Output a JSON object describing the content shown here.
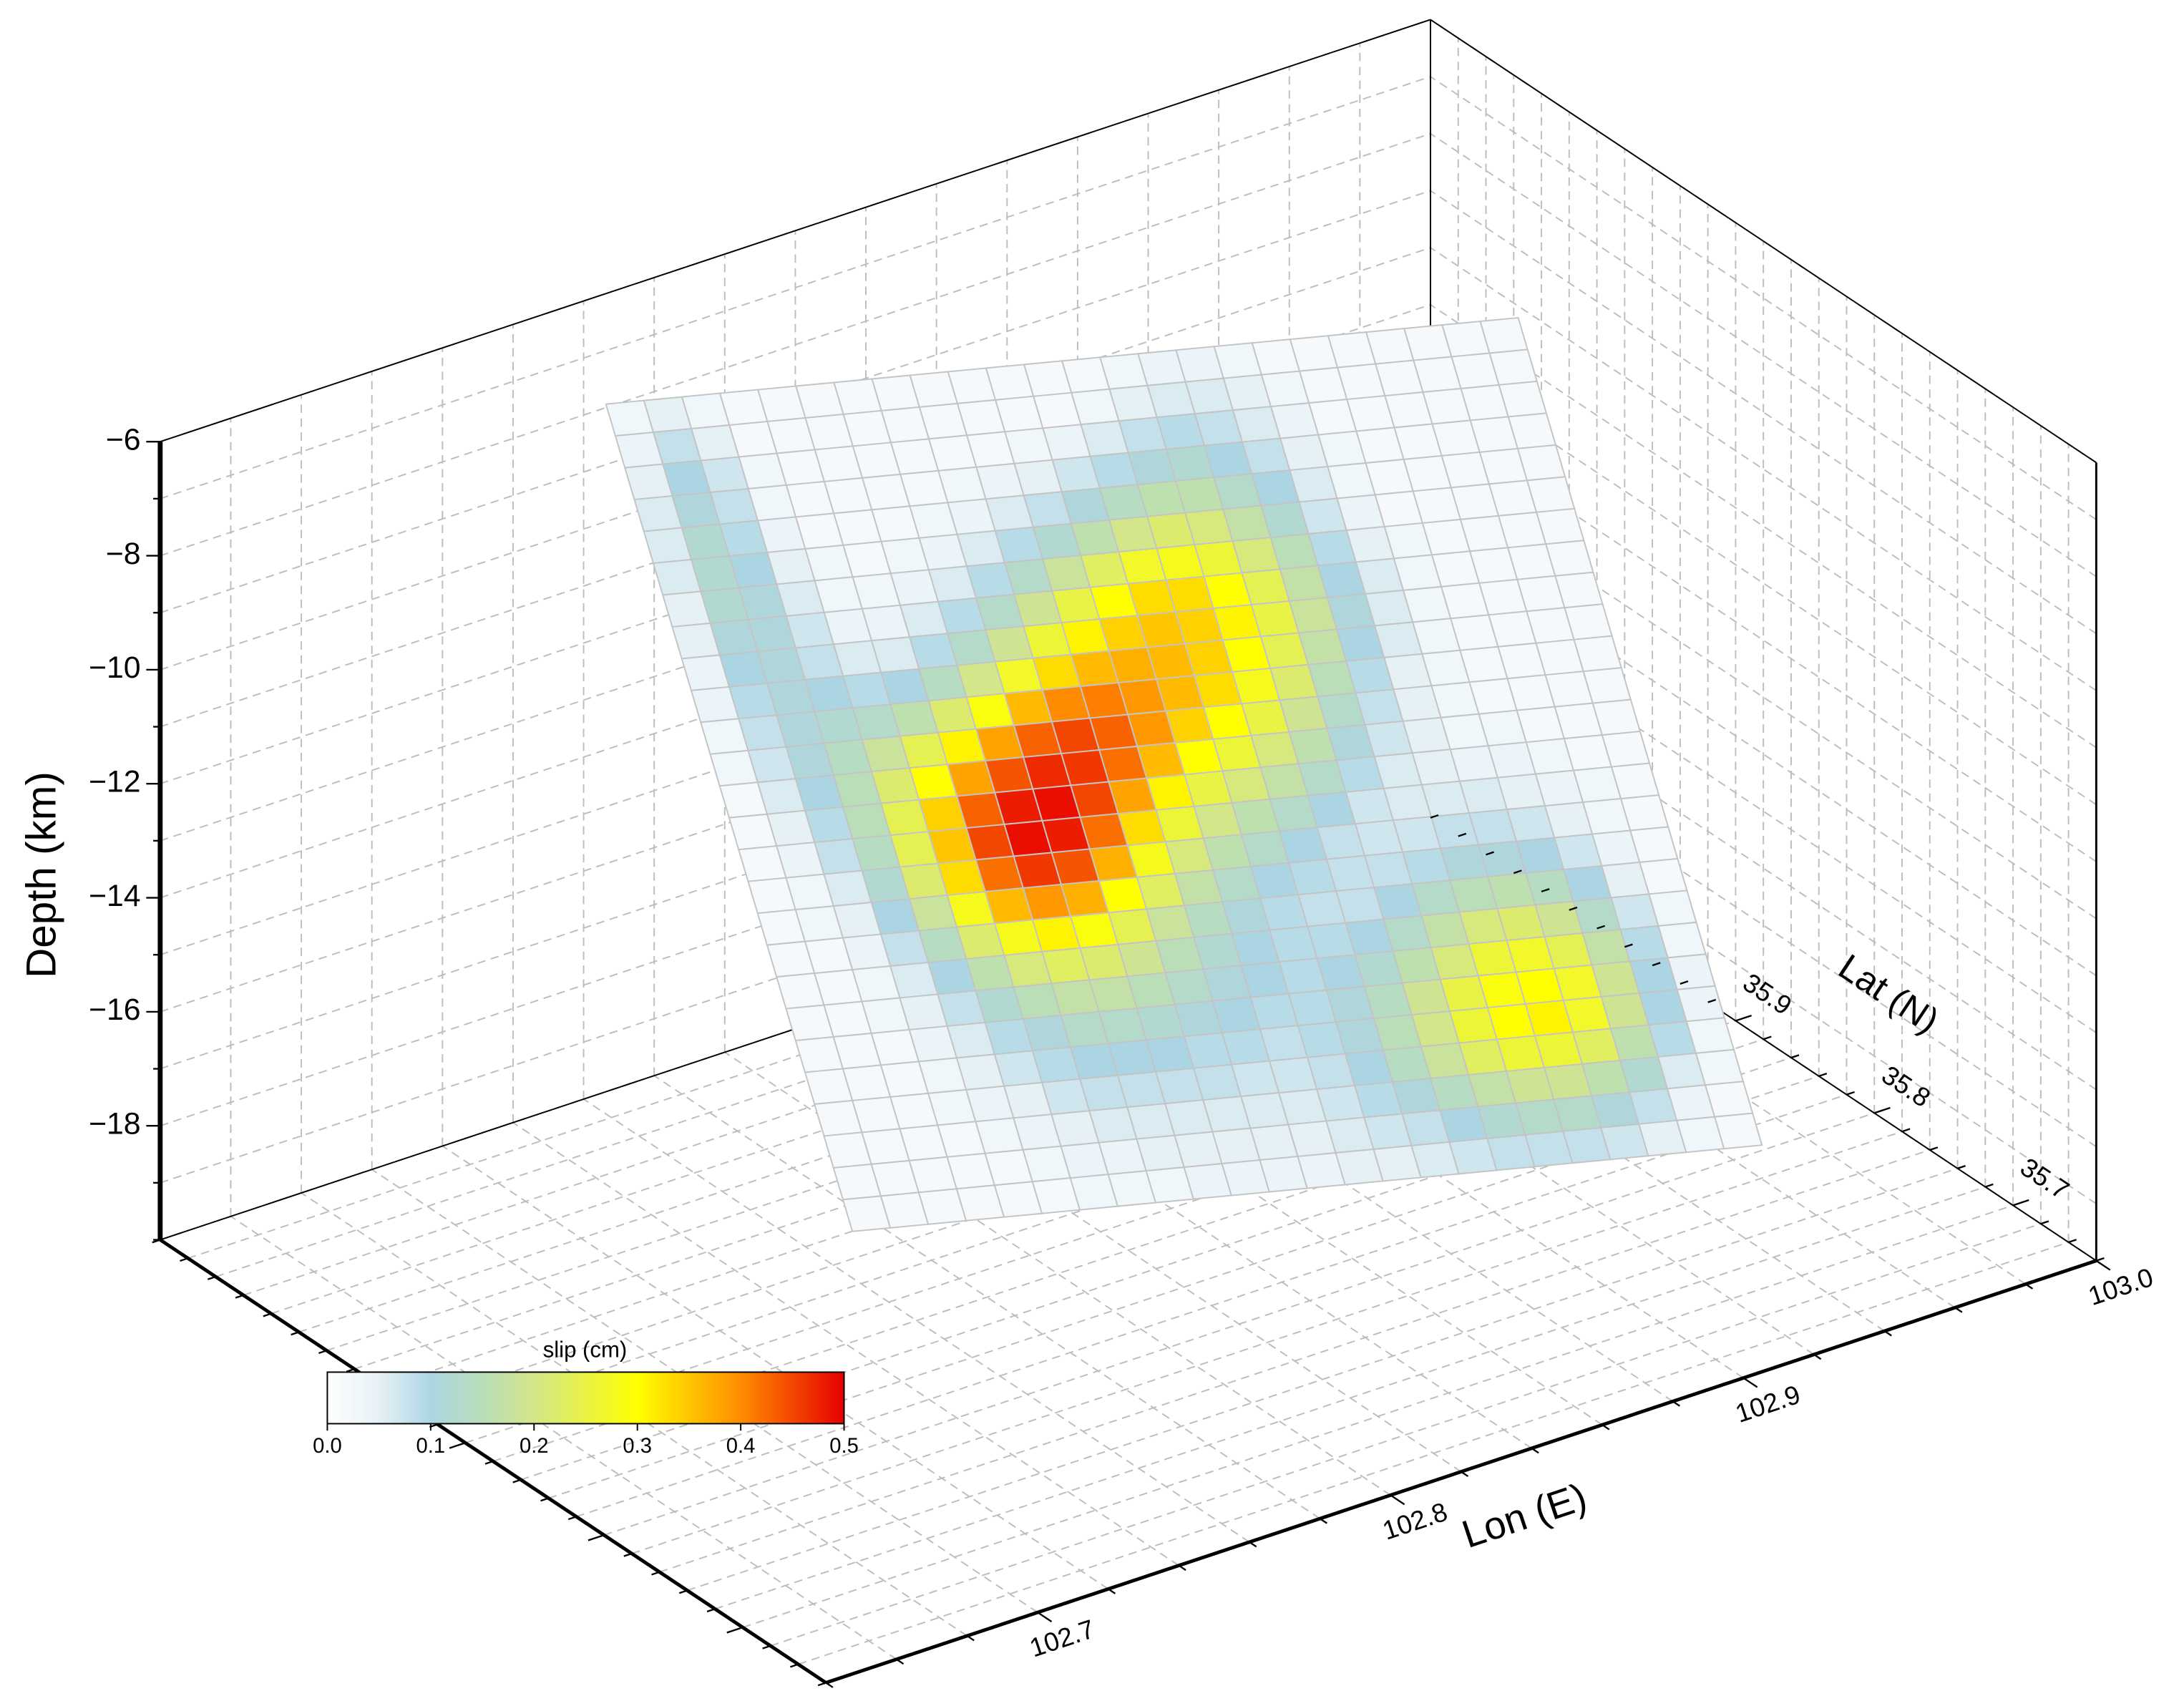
{
  "chart_data": {
    "type": "fault-slip-3d",
    "xlabel": "Lon (E)",
    "ylabel": "Lat (N)",
    "zlabel": "Depth (km)",
    "xlim": [
      102.64,
      103.0
    ],
    "xticks": [
      102.7,
      102.8,
      102.9,
      {
        "value": 103.0,
        "label": "103.0"
      }
    ],
    "ylim": [
      35.64,
      36.12
    ],
    "yticks": [
      35.7,
      35.8,
      35.9
    ],
    "zlim": [
      -20,
      -6
    ],
    "zticks": [
      {
        "value": -6,
        "label": "−6"
      },
      {
        "value": -8,
        "label": "−8"
      },
      {
        "value": -10,
        "label": "−10"
      },
      {
        "value": -12,
        "label": "−12"
      },
      {
        "value": -14,
        "label": "−14"
      },
      {
        "value": -16,
        "label": "−16"
      },
      {
        "value": -18,
        "label": "−18"
      }
    ],
    "grid": true,
    "grid_subdivisions": {
      "x": 5,
      "y": 5,
      "z": 2
    },
    "colorbar": {
      "label": "slip (cm)",
      "clim": [
        0,
        0.5
      ],
      "ticks": [
        {
          "value": 0,
          "label": "0.0"
        },
        0.1,
        0.2,
        0.3,
        0.4,
        0.5
      ],
      "colorscale": [
        [
          0,
          "#ffffff"
        ],
        [
          0.05,
          "#e6f1f6"
        ],
        [
          0.1,
          "#acd5e4"
        ],
        [
          0.15,
          "#b9deb8"
        ],
        [
          0.2,
          "#d3e68a"
        ],
        [
          0.3,
          "#ffff00"
        ],
        [
          0.4,
          "#ff8c00"
        ],
        [
          0.5,
          "#e60000"
        ]
      ]
    },
    "z": [
      [
        0.03,
        0.05,
        0.03,
        0.02,
        0.02,
        0.02,
        0.02,
        0.02,
        0.02,
        0.02,
        0.02,
        0.02,
        0.02,
        0.03,
        0.04,
        0.04,
        0.03,
        0.02,
        0.02,
        0.02,
        0.02,
        0.02,
        0.02,
        0.02
      ],
      [
        0.04,
        0.08,
        0.05,
        0.02,
        0.02,
        0.02,
        0.02,
        0.02,
        0.02,
        0.02,
        0.02,
        0.02,
        0.03,
        0.05,
        0.06,
        0.06,
        0.05,
        0.03,
        0.02,
        0.02,
        0.02,
        0.02,
        0.02,
        0.02
      ],
      [
        0.05,
        0.1,
        0.07,
        0.03,
        0.02,
        0.02,
        0.02,
        0.02,
        0.02,
        0.02,
        0.03,
        0.04,
        0.06,
        0.08,
        0.09,
        0.08,
        0.06,
        0.04,
        0.02,
        0.02,
        0.02,
        0.02,
        0.02,
        0.02
      ],
      [
        0.06,
        0.11,
        0.08,
        0.03,
        0.02,
        0.02,
        0.02,
        0.02,
        0.03,
        0.04,
        0.05,
        0.07,
        0.09,
        0.11,
        0.12,
        0.1,
        0.08,
        0.05,
        0.03,
        0.02,
        0.02,
        0.02,
        0.02,
        0.02
      ],
      [
        0.06,
        0.12,
        0.09,
        0.04,
        0.02,
        0.02,
        0.02,
        0.03,
        0.04,
        0.06,
        0.08,
        0.11,
        0.14,
        0.16,
        0.16,
        0.13,
        0.1,
        0.06,
        0.03,
        0.02,
        0.02,
        0.02,
        0.02,
        0.02
      ],
      [
        0.06,
        0.12,
        0.1,
        0.05,
        0.03,
        0.02,
        0.03,
        0.04,
        0.06,
        0.09,
        0.12,
        0.16,
        0.2,
        0.22,
        0.21,
        0.17,
        0.12,
        0.07,
        0.04,
        0.02,
        0.02,
        0.02,
        0.02,
        0.02
      ],
      [
        0.05,
        0.12,
        0.11,
        0.06,
        0.03,
        0.03,
        0.04,
        0.06,
        0.09,
        0.13,
        0.18,
        0.23,
        0.27,
        0.28,
        0.26,
        0.21,
        0.15,
        0.09,
        0.05,
        0.03,
        0.02,
        0.02,
        0.02,
        0.02
      ],
      [
        0.05,
        0.11,
        0.11,
        0.07,
        0.04,
        0.04,
        0.06,
        0.09,
        0.13,
        0.19,
        0.25,
        0.3,
        0.33,
        0.33,
        0.3,
        0.24,
        0.17,
        0.1,
        0.06,
        0.03,
        0.02,
        0.02,
        0.02,
        0.02
      ],
      [
        0.04,
        0.1,
        0.11,
        0.08,
        0.06,
        0.06,
        0.09,
        0.13,
        0.19,
        0.26,
        0.31,
        0.34,
        0.35,
        0.34,
        0.31,
        0.25,
        0.18,
        0.11,
        0.06,
        0.03,
        0.02,
        0.02,
        0.02,
        0.02
      ],
      [
        0.04,
        0.09,
        0.11,
        0.1,
        0.09,
        0.1,
        0.14,
        0.2,
        0.27,
        0.33,
        0.36,
        0.37,
        0.36,
        0.34,
        0.3,
        0.24,
        0.17,
        0.1,
        0.06,
        0.03,
        0.02,
        0.02,
        0.02,
        0.02
      ],
      [
        0.03,
        0.08,
        0.11,
        0.12,
        0.13,
        0.16,
        0.22,
        0.29,
        0.36,
        0.4,
        0.41,
        0.39,
        0.36,
        0.33,
        0.28,
        0.22,
        0.15,
        0.09,
        0.05,
        0.03,
        0.02,
        0.02,
        0.02,
        0.02
      ],
      [
        0.03,
        0.07,
        0.11,
        0.14,
        0.18,
        0.24,
        0.31,
        0.38,
        0.43,
        0.45,
        0.43,
        0.39,
        0.34,
        0.3,
        0.25,
        0.19,
        0.13,
        0.08,
        0.05,
        0.03,
        0.02,
        0.02,
        0.02,
        0.02
      ],
      [
        0.02,
        0.06,
        0.1,
        0.15,
        0.22,
        0.3,
        0.38,
        0.44,
        0.47,
        0.46,
        0.42,
        0.36,
        0.3,
        0.26,
        0.21,
        0.16,
        0.11,
        0.07,
        0.05,
        0.03,
        0.03,
        0.02,
        0.02,
        0.02
      ],
      [
        0.02,
        0.05,
        0.09,
        0.15,
        0.24,
        0.34,
        0.43,
        0.48,
        0.49,
        0.45,
        0.38,
        0.31,
        0.25,
        0.21,
        0.17,
        0.13,
        0.09,
        0.06,
        0.05,
        0.04,
        0.04,
        0.03,
        0.02,
        0.02
      ],
      [
        0.02,
        0.04,
        0.08,
        0.14,
        0.24,
        0.35,
        0.45,
        0.49,
        0.48,
        0.42,
        0.33,
        0.26,
        0.2,
        0.16,
        0.13,
        0.1,
        0.07,
        0.06,
        0.06,
        0.06,
        0.05,
        0.04,
        0.03,
        0.02
      ],
      [
        0.02,
        0.03,
        0.06,
        0.12,
        0.22,
        0.33,
        0.42,
        0.46,
        0.44,
        0.37,
        0.28,
        0.21,
        0.16,
        0.13,
        0.1,
        0.08,
        0.07,
        0.07,
        0.08,
        0.08,
        0.07,
        0.05,
        0.03,
        0.02
      ],
      [
        0.02,
        0.03,
        0.05,
        0.1,
        0.18,
        0.28,
        0.36,
        0.39,
        0.37,
        0.3,
        0.23,
        0.17,
        0.13,
        0.1,
        0.09,
        0.08,
        0.08,
        0.09,
        0.11,
        0.11,
        0.1,
        0.07,
        0.04,
        0.02
      ],
      [
        0.02,
        0.02,
        0.04,
        0.08,
        0.14,
        0.22,
        0.28,
        0.31,
        0.29,
        0.24,
        0.18,
        0.14,
        0.11,
        0.09,
        0.08,
        0.08,
        0.1,
        0.13,
        0.15,
        0.16,
        0.14,
        0.1,
        0.05,
        0.02
      ],
      [
        0.02,
        0.02,
        0.03,
        0.06,
        0.1,
        0.16,
        0.21,
        0.23,
        0.22,
        0.19,
        0.15,
        0.12,
        0.1,
        0.09,
        0.09,
        0.1,
        0.13,
        0.17,
        0.21,
        0.22,
        0.19,
        0.13,
        0.07,
        0.03
      ],
      [
        0.02,
        0.02,
        0.03,
        0.05,
        0.08,
        0.12,
        0.15,
        0.17,
        0.17,
        0.15,
        0.13,
        0.11,
        0.1,
        0.09,
        0.1,
        0.12,
        0.16,
        0.21,
        0.26,
        0.27,
        0.24,
        0.17,
        0.09,
        0.03
      ],
      [
        0.02,
        0.02,
        0.02,
        0.04,
        0.06,
        0.09,
        0.11,
        0.13,
        0.13,
        0.12,
        0.11,
        0.1,
        0.09,
        0.09,
        0.11,
        0.14,
        0.19,
        0.25,
        0.29,
        0.3,
        0.27,
        0.19,
        0.1,
        0.04
      ],
      [
        0.02,
        0.02,
        0.02,
        0.03,
        0.05,
        0.07,
        0.09,
        0.1,
        0.1,
        0.1,
        0.09,
        0.09,
        0.08,
        0.09,
        0.11,
        0.15,
        0.2,
        0.26,
        0.3,
        0.31,
        0.27,
        0.19,
        0.1,
        0.04
      ],
      [
        0.02,
        0.02,
        0.02,
        0.03,
        0.04,
        0.05,
        0.07,
        0.08,
        0.08,
        0.08,
        0.08,
        0.07,
        0.07,
        0.08,
        0.1,
        0.14,
        0.18,
        0.23,
        0.26,
        0.26,
        0.23,
        0.16,
        0.09,
        0.03
      ],
      [
        0.02,
        0.02,
        0.02,
        0.02,
        0.03,
        0.04,
        0.05,
        0.06,
        0.06,
        0.06,
        0.06,
        0.06,
        0.06,
        0.07,
        0.09,
        0.11,
        0.14,
        0.17,
        0.19,
        0.19,
        0.16,
        0.12,
        0.06,
        0.03
      ],
      [
        0.02,
        0.02,
        0.02,
        0.02,
        0.02,
        0.03,
        0.04,
        0.04,
        0.05,
        0.05,
        0.05,
        0.05,
        0.05,
        0.06,
        0.07,
        0.08,
        0.1,
        0.12,
        0.13,
        0.13,
        0.11,
        0.08,
        0.04,
        0.02
      ],
      [
        0.02,
        0.02,
        0.02,
        0.02,
        0.02,
        0.02,
        0.03,
        0.03,
        0.03,
        0.04,
        0.04,
        0.04,
        0.04,
        0.05,
        0.05,
        0.06,
        0.07,
        0.08,
        0.08,
        0.08,
        0.07,
        0.05,
        0.03,
        0.02
      ]
    ]
  }
}
